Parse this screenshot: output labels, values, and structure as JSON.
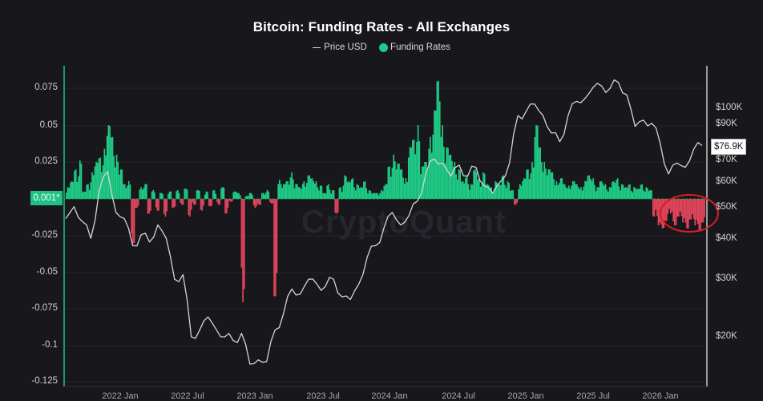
{
  "header": {
    "title": "Bitcoin: Funding Rates - All Exchanges",
    "legend": [
      {
        "label": "Price USD",
        "symbol": "line",
        "color": "#d8d8d8"
      },
      {
        "label": "Funding Rates",
        "symbol": "dot",
        "color": "#1fcb86"
      }
    ]
  },
  "watermark": "CryptoQuant",
  "colors": {
    "background": "#17171c",
    "positive_bar": "#1fcb86",
    "negative_bar": "#e0455a",
    "price_line": "#d6d6d6",
    "left_axis_line": "#1a9a66",
    "right_axis_line": "#9a9a9a",
    "grid": "#25252c",
    "annotation_circle": "#d81f26"
  },
  "current_values": {
    "funding_rate_label": "0.001*",
    "price_label": "$76.9K"
  },
  "chart_data": {
    "type": "bar+line",
    "title": "Bitcoin: Funding Rates - All Exchanges",
    "legend_position": "top-center",
    "grid": true,
    "x_axis": {
      "ticks": [
        "2022 Jan",
        "2022 Jul",
        "2023 Jan",
        "2023 Jul",
        "2024 Jan",
        "2024 Jul",
        "2025 Jan",
        "2025 Jul",
        "2026 Jan"
      ],
      "range": [
        "2021 Sep",
        "2026 Mar"
      ]
    },
    "y_left": {
      "label": "Funding Rates",
      "ticks": [
        "0.075",
        "0.05",
        "0.025",
        "0.001*",
        "-0.025",
        "-0.05",
        "-0.075",
        "-0.1",
        "-0.125"
      ],
      "range": [
        -0.125,
        0.09
      ]
    },
    "y_right": {
      "label": "Price USD",
      "scale": "log",
      "ticks": [
        "$100K",
        "$90K",
        "$70K",
        "$60K",
        "$50K",
        "$40K",
        "$30K",
        "$20K"
      ],
      "range": [
        14000,
        130000
      ]
    },
    "series": [
      {
        "name": "Price USD",
        "type": "line",
        "points": [
          [
            "2021 Sep",
            46000
          ],
          [
            "2021 Oct",
            50000
          ],
          [
            "2021 Oct",
            45000
          ],
          [
            "2021 Oct",
            40000
          ],
          [
            "2021 Nov",
            56000
          ],
          [
            "2021 Nov",
            64000
          ],
          [
            "2021 Dec",
            48000
          ],
          [
            "2022 Jan",
            46000
          ],
          [
            "2022 Jan",
            38000
          ],
          [
            "2022 Feb",
            41000
          ],
          [
            "2022 Feb",
            39000
          ],
          [
            "2022 Mar",
            44000
          ],
          [
            "2022 Apr",
            40000
          ],
          [
            "2022 May",
            30000
          ],
          [
            "2022 May",
            31000
          ],
          [
            "2022 Jun",
            20000
          ],
          [
            "2022 Jul",
            21000
          ],
          [
            "2022 Aug",
            23000
          ],
          [
            "2022 Sep",
            21000
          ],
          [
            "2022 Oct",
            20000
          ],
          [
            "2022 Oct",
            19500
          ],
          [
            "2022 Nov",
            20500
          ],
          [
            "2022 Nov",
            16500
          ],
          [
            "2022 Dec",
            17000
          ],
          [
            "2023 Jan",
            16800
          ],
          [
            "2023 Jan",
            21000
          ],
          [
            "2023 Feb",
            23500
          ],
          [
            "2023 Mar",
            28000
          ],
          [
            "2023 Apr",
            27000
          ],
          [
            "2023 Apr",
            30000
          ],
          [
            "2023 May",
            29000
          ],
          [
            "2023 Jun",
            28500
          ],
          [
            "2023 Jul",
            30000
          ],
          [
            "2023 Aug",
            26500
          ],
          [
            "2023 Sep",
            26000
          ],
          [
            "2023 Oct",
            29000
          ],
          [
            "2023 Oct",
            35000
          ],
          [
            "2023 Nov",
            38000
          ],
          [
            "2023 Dec",
            43000
          ],
          [
            "2023 Dec",
            48000
          ],
          [
            "2024 Jan",
            44000
          ],
          [
            "2024 Feb",
            47000
          ],
          [
            "2024 Feb",
            52000
          ],
          [
            "2024 Mar",
            63000
          ],
          [
            "2024 Mar",
            70000
          ],
          [
            "2024 Apr",
            68000
          ],
          [
            "2024 May",
            62000
          ],
          [
            "2024 Jun",
            67000
          ],
          [
            "2024 Jul",
            62000
          ],
          [
            "2024 Jul",
            66000
          ],
          [
            "2024 Aug",
            58000
          ],
          [
            "2024 Sep",
            55000
          ],
          [
            "2024 Sep",
            60000
          ],
          [
            "2024 Oct",
            68000
          ],
          [
            "2024 Nov",
            95000
          ],
          [
            "2024 Dec",
            98000
          ],
          [
            "2025 Jan",
            103000
          ],
          [
            "2025 Feb",
            95000
          ],
          [
            "2025 Mar",
            84000
          ],
          [
            "2025 Apr",
            79000
          ],
          [
            "2025 May",
            95000
          ],
          [
            "2025 May",
            105000
          ],
          [
            "2025 Jun",
            107000
          ],
          [
            "2025 Jul",
            116000
          ],
          [
            "2025 Aug",
            117000
          ],
          [
            "2025 Sep",
            115000
          ],
          [
            "2025 Oct",
            120000
          ],
          [
            "2025 Oct",
            110000
          ],
          [
            "2025 Nov",
            88000
          ],
          [
            "2025 Dec",
            92000
          ],
          [
            "2026 Jan",
            90000
          ],
          [
            "2026 Jan",
            78000
          ],
          [
            "2026 Feb",
            63000
          ],
          [
            "2026 Feb",
            68000
          ],
          [
            "2026 Mar",
            66000
          ],
          [
            "2026 Mar",
            75000
          ],
          [
            "2026 Mar",
            76900
          ]
        ]
      },
      {
        "name": "Funding Rates",
        "type": "bar",
        "positive_color": "#1fcb86",
        "negative_color": "#e0455a",
        "values": [
          0.008,
          0.012,
          0.02,
          0.026,
          0.005,
          0.01,
          0.018,
          0.025,
          0.028,
          0.034,
          0.05,
          0.042,
          0.03,
          0.02,
          0.01,
          0.012,
          -0.03,
          -0.006,
          0.008,
          0.01,
          -0.01,
          0.006,
          -0.008,
          0.004,
          -0.012,
          0.005,
          -0.006,
          0.006,
          -0.004,
          0.007,
          -0.012,
          -0.004,
          0.006,
          -0.008,
          0.005,
          -0.005,
          0.006,
          -0.004,
          0.008,
          -0.01,
          -0.002,
          0.005,
          0.004,
          -0.07,
          0.002,
          0.004,
          -0.006,
          -0.004,
          0.004,
          0.006,
          -0.003,
          -0.066,
          0.013,
          0.01,
          0.012,
          0.018,
          0.01,
          0.008,
          0.012,
          0.016,
          0.014,
          0.012,
          0.009,
          0.004,
          0.01,
          0.006,
          -0.01,
          0.008,
          0.016,
          0.012,
          0.014,
          0.01,
          0.008,
          0.012,
          0.006,
          0.004,
          0.004,
          0.006,
          0.01,
          0.022,
          0.03,
          0.024,
          0.02,
          0.014,
          0.035,
          0.04,
          0.05,
          0.022,
          0.025,
          0.042,
          0.06,
          0.08,
          0.05,
          0.035,
          0.03,
          0.025,
          0.02,
          0.012,
          0.016,
          0.01,
          0.02,
          0.014,
          0.018,
          0.01,
          0.008,
          0.012,
          0.01,
          0.016,
          0.012,
          0.006,
          -0.004,
          0.01,
          0.014,
          0.02,
          0.025,
          0.05,
          0.035,
          0.025,
          0.02,
          0.018,
          0.012,
          0.014,
          0.01,
          0.009,
          0.012,
          0.01,
          0.008,
          0.012,
          0.016,
          0.014,
          0.008,
          0.012,
          0.01,
          0.008,
          0.012,
          0.014,
          0.01,
          0.008,
          0.01,
          0.008,
          0.007,
          0.01,
          0.008,
          0.006,
          -0.012,
          -0.018,
          -0.02,
          -0.015,
          -0.01,
          -0.018,
          -0.012,
          -0.016,
          -0.02,
          -0.014,
          -0.018,
          -0.022,
          -0.016
        ]
      }
    ],
    "annotations": [
      {
        "type": "ellipse",
        "color": "#d81f26",
        "target": "negative funding rates, 2026 Jan–Mar"
      }
    ]
  }
}
